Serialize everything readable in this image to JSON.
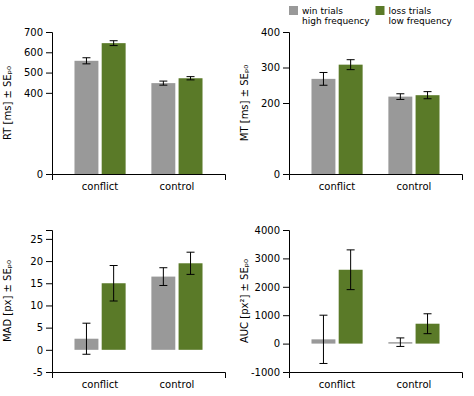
{
  "chart_data": [
    {
      "type": "bar",
      "ylabel": "RT [ms] ± SEₚ₀",
      "categories": [
        "conflict",
        "control"
      ],
      "series": [
        {
          "color": "#999999",
          "values": [
            558,
            448
          ],
          "errors": [
            15,
            10
          ]
        },
        {
          "color": "#5a7a28",
          "values": [
            645,
            472
          ],
          "errors": [
            12,
            8
          ]
        }
      ],
      "ylim": [
        0,
        700
      ],
      "yticks": [
        0,
        400,
        500,
        600,
        700
      ]
    },
    {
      "type": "bar",
      "ylabel": "MT [ms] ± SEₚ₀",
      "categories": [
        "conflict",
        "control"
      ],
      "series": [
        {
          "name": "win trials\nhigh frequency",
          "color": "#999999",
          "values": [
            268,
            218
          ],
          "errors": [
            18,
            8
          ]
        },
        {
          "name": "loss trials\nlow frequency",
          "color": "#5a7a28",
          "values": [
            308,
            222
          ],
          "errors": [
            14,
            10
          ]
        }
      ],
      "ylim": [
        0,
        400
      ],
      "yticks": [
        0,
        200,
        300,
        400
      ],
      "legend": "upper left"
    },
    {
      "type": "bar",
      "ylabel": "MAD [px] ± SEₚ₀",
      "categories": [
        "conflict",
        "control"
      ],
      "series": [
        {
          "color": "#999999",
          "values": [
            2.5,
            16.5
          ],
          "errors": [
            3.5,
            2.0
          ]
        },
        {
          "color": "#5a7a28",
          "values": [
            15.0,
            19.5
          ],
          "errors": [
            4.0,
            2.5
          ]
        }
      ],
      "ylim": [
        -5,
        27
      ],
      "yticks": [
        -5,
        0,
        5,
        10,
        15,
        20,
        25
      ]
    },
    {
      "type": "bar",
      "ylabel": "AUC [px²] ± SEₚ₀",
      "categories": [
        "conflict",
        "control"
      ],
      "series": [
        {
          "color": "#999999",
          "values": [
            150,
            50
          ],
          "errors": [
            850,
            150
          ]
        },
        {
          "color": "#5a7a28",
          "values": [
            2600,
            700
          ],
          "errors": [
            700,
            350
          ]
        }
      ],
      "ylim": [
        -1000,
        4000
      ],
      "yticks": [
        -1000,
        0,
        1000,
        2000,
        3000,
        4000
      ]
    }
  ]
}
